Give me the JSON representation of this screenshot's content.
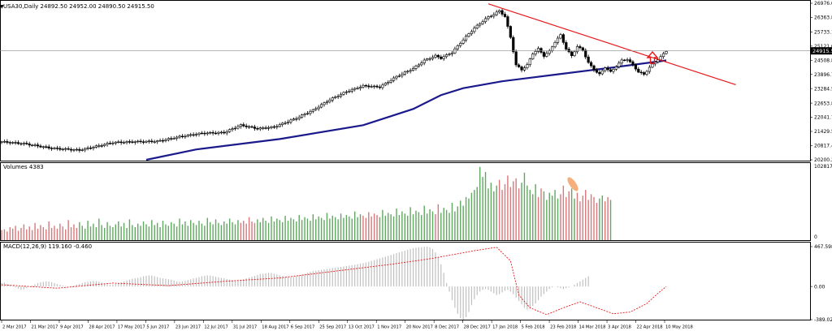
{
  "window": {
    "symbol_line": "USA30,Daily  24892.50 24952.00 24890.50 24915.50"
  },
  "colors": {
    "background": "#ffffff",
    "candle": "#000000",
    "ma_line": "#1a1a8c",
    "trendline": "#e8191c",
    "arrow": "#e8191c",
    "volume_up": "#5fa85f",
    "volume_down": "#d9777a",
    "macd_hist": "#c0c0c0",
    "macd_signal": "#e8191c",
    "highlight": "#f4a56e",
    "price_box": "#000000"
  },
  "chart_data": [
    {
      "type": "candlestick",
      "panel": "price",
      "title": "USA30,Daily",
      "ohlc_last": {
        "open": 24892.5,
        "high": 24952.0,
        "low": 24890.5,
        "close": 24915.5
      },
      "y_ticks": [
        20200.25,
        20817.4,
        21429.55,
        22041.7,
        22653.85,
        23284.55,
        23896.7,
        24508.85,
        25121.0,
        25733.15,
        26363.85,
        26976.0
      ],
      "y_tick_labels": [
        "20200.25",
        "20817.40",
        "21429.55",
        "22041.70",
        "22653.85",
        "23284.55",
        "23896.70",
        "24508.85",
        "25121.00",
        "25733.15",
        "26363.85",
        "26976.00"
      ],
      "ylim": [
        20200.25,
        26976.0
      ],
      "current_price": 24915.5,
      "current_price_label": "24915.50",
      "x_tick_labels": [
        "2 Mar 2017",
        "21 Mar 2017",
        "9 Apr 2017",
        "28 Apr 2017",
        "17 May 2017",
        "5 Jun 2017",
        "23 Jun 2017",
        "12 Jul 2017",
        "31 Jul 2017",
        "18 Aug 2017",
        "6 Sep 2017",
        "25 Sep 2017",
        "13 Oct 2017",
        "1 Nov 2017",
        "20 Nov 2017",
        "8 Dec 2017",
        "28 Dec 2017",
        "17 Jan 2018",
        "5 Feb 2018",
        "23 Feb 2018",
        "14 Mar 2018",
        "3 Apr 2018",
        "22 Apr 2018",
        "10 May 2018"
      ],
      "close_path": [
        [
          0,
          20980
        ],
        [
          8,
          20900
        ],
        [
          18,
          20700
        ],
        [
          28,
          20620
        ],
        [
          34,
          20780
        ],
        [
          40,
          20950
        ],
        [
          48,
          20980
        ],
        [
          56,
          21000
        ],
        [
          64,
          21200
        ],
        [
          72,
          21350
        ],
        [
          80,
          21380
        ],
        [
          86,
          21700
        ],
        [
          92,
          21550
        ],
        [
          98,
          21620
        ],
        [
          106,
          22000
        ],
        [
          112,
          22350
        ],
        [
          118,
          22800
        ],
        [
          124,
          23150
        ],
        [
          130,
          23400
        ],
        [
          136,
          23350
        ],
        [
          142,
          23800
        ],
        [
          148,
          24150
        ],
        [
          152,
          24500
        ],
        [
          156,
          24700
        ],
        [
          158,
          24600
        ],
        [
          162,
          24850
        ],
        [
          166,
          25400
        ],
        [
          170,
          25900
        ],
        [
          174,
          26300
        ],
        [
          177,
          26500
        ],
        [
          179,
          26650
        ],
        [
          181,
          26400
        ],
        [
          183,
          25500
        ],
        [
          185,
          24300
        ],
        [
          187,
          24100
        ],
        [
          189,
          24300
        ],
        [
          191,
          24800
        ],
        [
          193,
          25000
        ],
        [
          195,
          24700
        ],
        [
          197,
          24900
        ],
        [
          199,
          25300
        ],
        [
          201,
          25600
        ],
        [
          203,
          25000
        ],
        [
          205,
          24700
        ],
        [
          207,
          25100
        ],
        [
          209,
          24950
        ],
        [
          211,
          24400
        ],
        [
          213,
          24100
        ],
        [
          215,
          23900
        ],
        [
          217,
          24200
        ],
        [
          219,
          24000
        ],
        [
          221,
          24250
        ],
        [
          223,
          24500
        ],
        [
          225,
          24550
        ],
        [
          227,
          24300
        ],
        [
          229,
          24000
        ],
        [
          231,
          23900
        ],
        [
          233,
          24200
        ],
        [
          235,
          24450
        ],
        [
          237,
          24650
        ],
        [
          239,
          24915
        ]
      ],
      "moving_average": [
        [
          52,
          20200
        ],
        [
          70,
          20650
        ],
        [
          100,
          21100
        ],
        [
          130,
          21700
        ],
        [
          148,
          22400
        ],
        [
          158,
          23000
        ],
        [
          166,
          23300
        ],
        [
          180,
          23600
        ],
        [
          200,
          23900
        ],
        [
          220,
          24200
        ],
        [
          239,
          24500
        ]
      ],
      "trendline": [
        [
          175,
          26950
        ],
        [
          264,
          23450
        ]
      ],
      "annotation": "breakout-arrow-up"
    },
    {
      "type": "bar",
      "panel": "volumes",
      "title": "Volumes 4383",
      "ylim": [
        0,
        102817
      ],
      "y_tick_labels": [
        "0",
        "102817"
      ],
      "values": [
        14000,
        15000,
        12000,
        18000,
        16000,
        20000,
        13000,
        17000,
        22000,
        15000,
        19000,
        14000,
        24000,
        16000,
        21000,
        18000,
        15000,
        26000,
        17000,
        20000,
        16000,
        23000,
        19000,
        15000,
        28000,
        18000,
        22000,
        17000,
        25000,
        20000,
        16000,
        27000,
        19000,
        23000,
        18000,
        30000,
        21000,
        17000,
        25000,
        20000,
        18000,
        22000,
        26000,
        19000,
        24000,
        17000,
        29000,
        21000,
        18000,
        23000,
        20000,
        26000,
        22000,
        19000,
        28000,
        21000,
        24000,
        18000,
        27000,
        22000,
        20000,
        25000,
        23000,
        19000,
        30000,
        22000,
        26000,
        20000,
        28000,
        24000,
        21000,
        27000,
        23000,
        20000,
        31000,
        25000,
        22000,
        29000,
        24000,
        21000,
        26000,
        23000,
        30000,
        25000,
        22000,
        28000,
        24000,
        27000,
        23000,
        32000,
        26000,
        24000,
        29000,
        25000,
        31000,
        27000,
        24000,
        33000,
        26000,
        30000,
        28000,
        25000,
        34000,
        27000,
        31000,
        29000,
        26000,
        35000,
        28000,
        32000,
        30000,
        27000,
        36000,
        29000,
        33000,
        31000,
        28000,
        38000,
        30000,
        34000,
        32000,
        29000,
        37000,
        31000,
        35000,
        33000,
        30000,
        40000,
        32000,
        36000,
        34000,
        31000,
        39000,
        33000,
        37000,
        35000,
        32000,
        42000,
        34000,
        38000,
        36000,
        33000,
        44000,
        35000,
        40000,
        37000,
        34000,
        46000,
        36000,
        41000,
        39000,
        35000,
        48000,
        37000,
        43000,
        40000,
        36000,
        50000,
        38000,
        45000,
        42000,
        38000,
        52000,
        40000,
        47000,
        55000,
        48000,
        60000,
        58000,
        66000,
        70000,
        74000,
        102000,
        88000,
        95000,
        72000,
        80000,
        68000,
        76000,
        84000,
        70000,
        78000,
        90000,
        74000,
        82000,
        86000,
        72000,
        80000,
        94000,
        76000,
        70000,
        64000,
        78000,
        60000,
        72000,
        68000,
        56000,
        66000,
        62000,
        70000,
        58000,
        64000,
        76000,
        60000,
        68000,
        72000,
        58000,
        66000,
        54000,
        62000,
        70000,
        56000,
        64000,
        60000,
        52000,
        58000,
        62000,
        54000,
        60000,
        56000
      ]
    },
    {
      "type": "bar",
      "panel": "macd",
      "title": "MACD(12,26,9) 119.160 -0.460",
      "macd_value": 119.16,
      "signal_value": -0.46,
      "ylim": [
        -389.024,
        467.598
      ],
      "y_tick_labels": [
        "467.598",
        "0.00",
        "-389.024"
      ],
      "histogram": [
        40,
        45,
        30,
        20,
        5,
        -10,
        -25,
        -40,
        -35,
        -20,
        -5,
        10,
        25,
        40,
        50,
        55,
        60,
        58,
        50,
        40,
        30,
        20,
        10,
        5,
        0,
        5,
        10,
        20,
        30,
        40,
        50,
        55,
        60,
        65,
        62,
        55,
        45,
        35,
        25,
        20,
        25,
        30,
        40,
        50,
        60,
        70,
        80,
        90,
        95,
        100,
        110,
        120,
        125,
        130,
        128,
        120,
        110,
        100,
        95,
        90,
        85,
        80,
        70,
        60,
        55,
        60,
        65,
        75,
        85,
        95,
        100,
        110,
        120,
        125,
        130,
        128,
        122,
        115,
        108,
        100,
        95,
        88,
        80,
        75,
        70,
        72,
        78,
        85,
        95,
        105,
        115,
        125,
        135,
        145,
        150,
        155,
        160,
        158,
        150,
        140,
        130,
        122,
        115,
        110,
        108,
        112,
        120,
        130,
        140,
        150,
        160,
        170,
        180,
        185,
        190,
        195,
        200,
        205,
        210,
        215,
        220,
        225,
        230,
        235,
        240,
        245,
        250,
        255,
        262,
        268,
        275,
        282,
        290,
        300,
        310,
        320,
        330,
        340,
        350,
        360,
        370,
        380,
        390,
        400,
        410,
        420,
        430,
        440,
        450,
        455,
        460,
        462,
        465,
        467,
        460,
        440,
        400,
        340,
        260,
        160,
        40,
        -60,
        -160,
        -250,
        -320,
        -370,
        -389,
        -360,
        -300,
        -220,
        -150,
        -100,
        -60,
        -40,
        -30,
        -40,
        -60,
        -80,
        -100,
        -90,
        -70,
        -50,
        -40,
        -60,
        -90,
        -130,
        -170,
        -210,
        -250,
        -270,
        -260,
        -230,
        -200,
        -160,
        -120,
        -90,
        -60,
        -30,
        -10,
        0,
        -10,
        -20,
        -30,
        -20,
        -10,
        0,
        20,
        40,
        60,
        80,
        100,
        119
      ],
      "signal_path": [
        [
          0,
          20
        ],
        [
          20,
          -20
        ],
        [
          40,
          40
        ],
        [
          60,
          10
        ],
        [
          80,
          60
        ],
        [
          100,
          100
        ],
        [
          120,
          180
        ],
        [
          140,
          260
        ],
        [
          155,
          330
        ],
        [
          170,
          420
        ],
        [
          178,
          460
        ],
        [
          183,
          300
        ],
        [
          186,
          -100
        ],
        [
          190,
          -250
        ],
        [
          196,
          -330
        ],
        [
          202,
          -250
        ],
        [
          208,
          -180
        ],
        [
          214,
          -250
        ],
        [
          220,
          -320
        ],
        [
          226,
          -300
        ],
        [
          232,
          -200
        ],
        [
          236,
          -80
        ],
        [
          239,
          -0.46
        ]
      ]
    }
  ]
}
